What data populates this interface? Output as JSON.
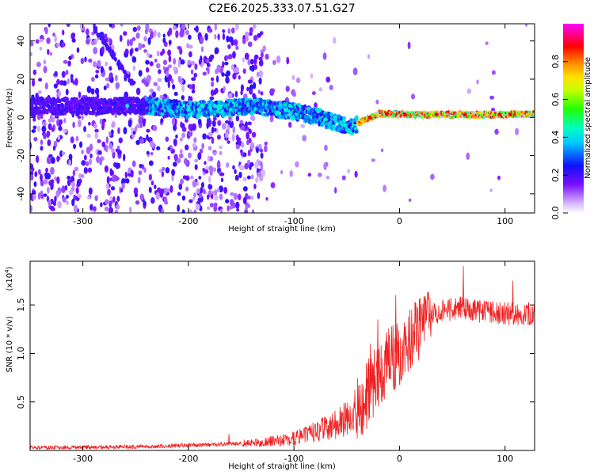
{
  "figure": {
    "title": "C2E6.2025.333.07.51.G27",
    "colors": {
      "snr_line": "#ee2020",
      "frame": "#000000"
    }
  },
  "chart_data": [
    {
      "type": "heatmap",
      "title": "C2E6.2025.333.07.51.G27",
      "xlabel": "Height of straight line (km)",
      "ylabel": "Frequency (Hz)",
      "xlim": [
        -350,
        128
      ],
      "ylim": [
        -50,
        49
      ],
      "x_ticks": [
        -300,
        -200,
        -100,
        0,
        100
      ],
      "x_tick_labels": [
        "-300",
        "-200",
        "-100",
        "0",
        "100"
      ],
      "y_ticks": [
        -40,
        -20,
        0,
        20,
        40
      ],
      "y_tick_labels": [
        "-40",
        "-20",
        "0",
        "20",
        "40"
      ],
      "colorbar": {
        "label": "Normalized spectral amplitude",
        "range": [
          0,
          1
        ],
        "ticks": [
          0.0,
          0.2,
          0.4,
          0.6,
          0.8
        ],
        "tick_labels": [
          "0.0",
          "0.2",
          "0.4",
          "0.6",
          "0.8"
        ]
      },
      "ridge": {
        "description_points_x": [
          -345,
          -270,
          -240,
          -200,
          -160,
          -140,
          -110,
          -90,
          -75,
          -60,
          -45,
          -35,
          -20,
          0,
          40,
          128
        ],
        "description_points_y": [
          6,
          6,
          6,
          4,
          5,
          6,
          4,
          2,
          0,
          -3,
          -5,
          -2,
          2,
          1.5,
          1.5,
          1.5
        ]
      },
      "diagonal_feature": {
        "x": [
          -290,
          -250
        ],
        "y": [
          48,
          15
        ]
      },
      "fringe_bands": [
        [
          -225,
          -210
        ],
        [
          -180,
          -170
        ],
        [
          -158,
          -150
        ],
        [
          -140,
          -125
        ]
      ]
    },
    {
      "type": "line",
      "xlabel": "Height of straight line (km)",
      "ylabel": "SNR (10 * v/v)",
      "scale_label": "(x10",
      "scale_exponent": "4",
      "xlim": [
        -350,
        128
      ],
      "ylim": [
        0.0,
        1.95
      ],
      "x_ticks": [
        -300,
        -200,
        -100,
        0,
        100
      ],
      "x_tick_labels": [
        "-300",
        "-200",
        "-100",
        "0",
        "100"
      ],
      "y_ticks": [
        0.5,
        1.0,
        1.5
      ],
      "y_tick_labels": [
        "0.5",
        "1.0",
        "1.5"
      ],
      "envelope_x": [
        -350,
        -250,
        -180,
        -140,
        -120,
        -100,
        -80,
        -60,
        -50,
        -40,
        -30,
        -20,
        -10,
        0,
        10,
        20,
        30,
        40,
        50,
        60,
        70,
        80,
        90,
        100,
        110,
        128
      ],
      "envelope_y": [
        0.03,
        0.04,
        0.06,
        0.08,
        0.1,
        0.13,
        0.2,
        0.28,
        0.35,
        0.45,
        0.62,
        0.8,
        0.95,
        1.05,
        1.15,
        1.3,
        1.42,
        1.45,
        1.47,
        1.48,
        1.46,
        1.44,
        1.43,
        1.42,
        1.42,
        1.42
      ],
      "peaks": [
        {
          "x": -162,
          "y": 0.17
        },
        {
          "x": -28,
          "y": 1.1
        },
        {
          "x": -21,
          "y": 1.35
        },
        {
          "x": -4,
          "y": 1.6
        },
        {
          "x": 60,
          "y": 1.9
        },
        {
          "x": 107,
          "y": 1.75
        }
      ]
    }
  ]
}
